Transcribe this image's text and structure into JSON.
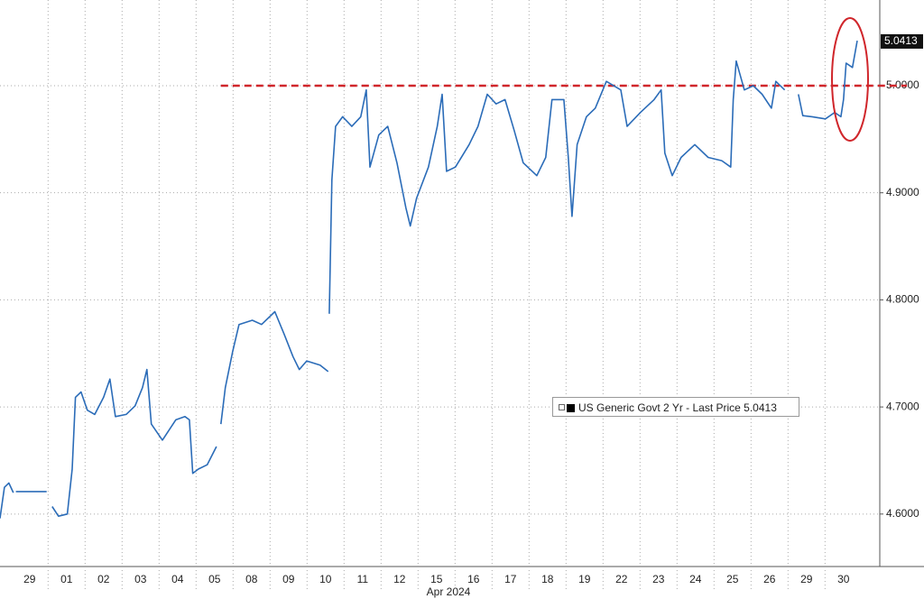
{
  "chart_data": {
    "type": "line",
    "xlabel": "Apr 2024",
    "xlim": [
      -0.8,
      22.98
    ],
    "xticks": [
      {
        "value": 0,
        "label": "29"
      },
      {
        "value": 1,
        "label": "01"
      },
      {
        "value": 2,
        "label": "02"
      },
      {
        "value": 3,
        "label": "03"
      },
      {
        "value": 4,
        "label": "04"
      },
      {
        "value": 5,
        "label": "05"
      },
      {
        "value": 6,
        "label": "08"
      },
      {
        "value": 7,
        "label": "09"
      },
      {
        "value": 8,
        "label": "10"
      },
      {
        "value": 9,
        "label": "11"
      },
      {
        "value": 10,
        "label": "12"
      },
      {
        "value": 11,
        "label": "15"
      },
      {
        "value": 12,
        "label": "16"
      },
      {
        "value": 13,
        "label": "17"
      },
      {
        "value": 14,
        "label": "18"
      },
      {
        "value": 15,
        "label": "19"
      },
      {
        "value": 16,
        "label": "22"
      },
      {
        "value": 17,
        "label": "23"
      },
      {
        "value": 18,
        "label": "24"
      },
      {
        "value": 19,
        "label": "25"
      },
      {
        "value": 20,
        "label": "26"
      },
      {
        "value": 21,
        "label": "29"
      },
      {
        "value": 22,
        "label": "30"
      }
    ],
    "ylim": [
      4.551,
      5.08
    ],
    "yticks": [
      {
        "value": 4.6,
        "label": "4.6000"
      },
      {
        "value": 4.7,
        "label": "4.7000"
      },
      {
        "value": 4.8,
        "label": "4.8000"
      },
      {
        "value": 4.9,
        "label": "4.9000"
      },
      {
        "value": 5.0,
        "label": "5.0000"
      }
    ],
    "grid": true,
    "x": [
      -0.8,
      -0.68,
      -0.56,
      -0.44,
      -0.4,
      -0.37,
      0.46,
      0.5,
      0.61,
      0.78,
      1.02,
      1.15,
      1.24,
      1.39,
      1.56,
      1.76,
      2.0,
      2.17,
      2.32,
      2.61,
      2.85,
      3.05,
      3.17,
      3.29,
      3.59,
      3.95,
      4.2,
      4.32,
      4.41,
      4.56,
      4.8,
      5.05,
      5.1,
      5.17,
      5.29,
      5.49,
      5.66,
      6.02,
      6.27,
      6.63,
      6.88,
      7.12,
      7.29,
      7.49,
      7.85,
      8.07,
      8.08,
      8.1,
      8.17,
      8.27,
      8.46,
      8.71,
      8.95,
      9.1,
      9.2,
      9.44,
      9.68,
      9.93,
      10.17,
      10.29,
      10.46,
      10.78,
      11.02,
      11.15,
      11.27,
      11.51,
      11.88,
      12.12,
      12.37,
      12.61,
      12.85,
      13.1,
      13.34,
      13.71,
      13.95,
      14.12,
      14.44,
      14.56,
      14.66,
      14.8,
      15.05,
      15.29,
      15.59,
      15.98,
      16.15,
      16.51,
      16.88,
      17.07,
      17.17,
      17.37,
      17.61,
      17.98,
      18.34,
      18.71,
      18.95,
      19.02,
      19.1,
      19.32,
      19.56,
      19.8,
      20.05,
      20.17,
      20.41,
      20.6,
      20.78,
      20.9,
      21.15,
      21.51,
      21.76,
      21.93,
      22.0,
      22.07,
      22.24,
      22.37
    ],
    "series": [
      {
        "name": "US Generic Govt 2 Yr - Last Price 5.0413",
        "color": "#2b6cb8",
        "values": [
          4.596,
          4.625,
          4.629,
          4.62,
          null,
          4.621,
          4.621,
          null,
          4.607,
          4.598,
          4.6,
          4.642,
          4.709,
          4.714,
          4.697,
          4.693,
          4.709,
          4.726,
          4.691,
          4.693,
          4.701,
          4.718,
          4.735,
          4.684,
          4.669,
          4.688,
          4.691,
          4.688,
          4.638,
          4.642,
          4.646,
          4.663,
          null,
          4.684,
          4.718,
          4.752,
          4.777,
          4.781,
          4.777,
          4.789,
          4.768,
          4.747,
          4.735,
          4.743,
          4.739,
          4.733,
          null,
          4.787,
          4.912,
          4.962,
          4.971,
          4.962,
          4.971,
          4.996,
          4.924,
          4.954,
          4.962,
          4.928,
          4.886,
          4.869,
          4.895,
          4.924,
          4.962,
          4.992,
          4.92,
          4.924,
          4.945,
          4.962,
          4.992,
          4.983,
          4.987,
          4.958,
          4.928,
          4.916,
          4.933,
          4.987,
          4.987,
          4.933,
          4.878,
          4.945,
          4.971,
          4.979,
          5.004,
          4.996,
          4.962,
          4.975,
          4.987,
          4.996,
          4.937,
          4.916,
          4.933,
          4.945,
          4.933,
          4.93,
          4.924,
          4.987,
          5.023,
          4.996,
          5.0,
          4.992,
          4.979,
          5.004,
          4.996,
          null,
          4.992,
          4.972,
          4.971,
          4.969,
          4.975,
          4.971,
          4.987,
          5.021,
          5.017,
          5.042
        ]
      }
    ],
    "reference_line": {
      "value": 5.0,
      "start": 5.17,
      "color": "#d0262b"
    },
    "last_price": {
      "value": 5.0413,
      "label": "5.0413"
    }
  }
}
